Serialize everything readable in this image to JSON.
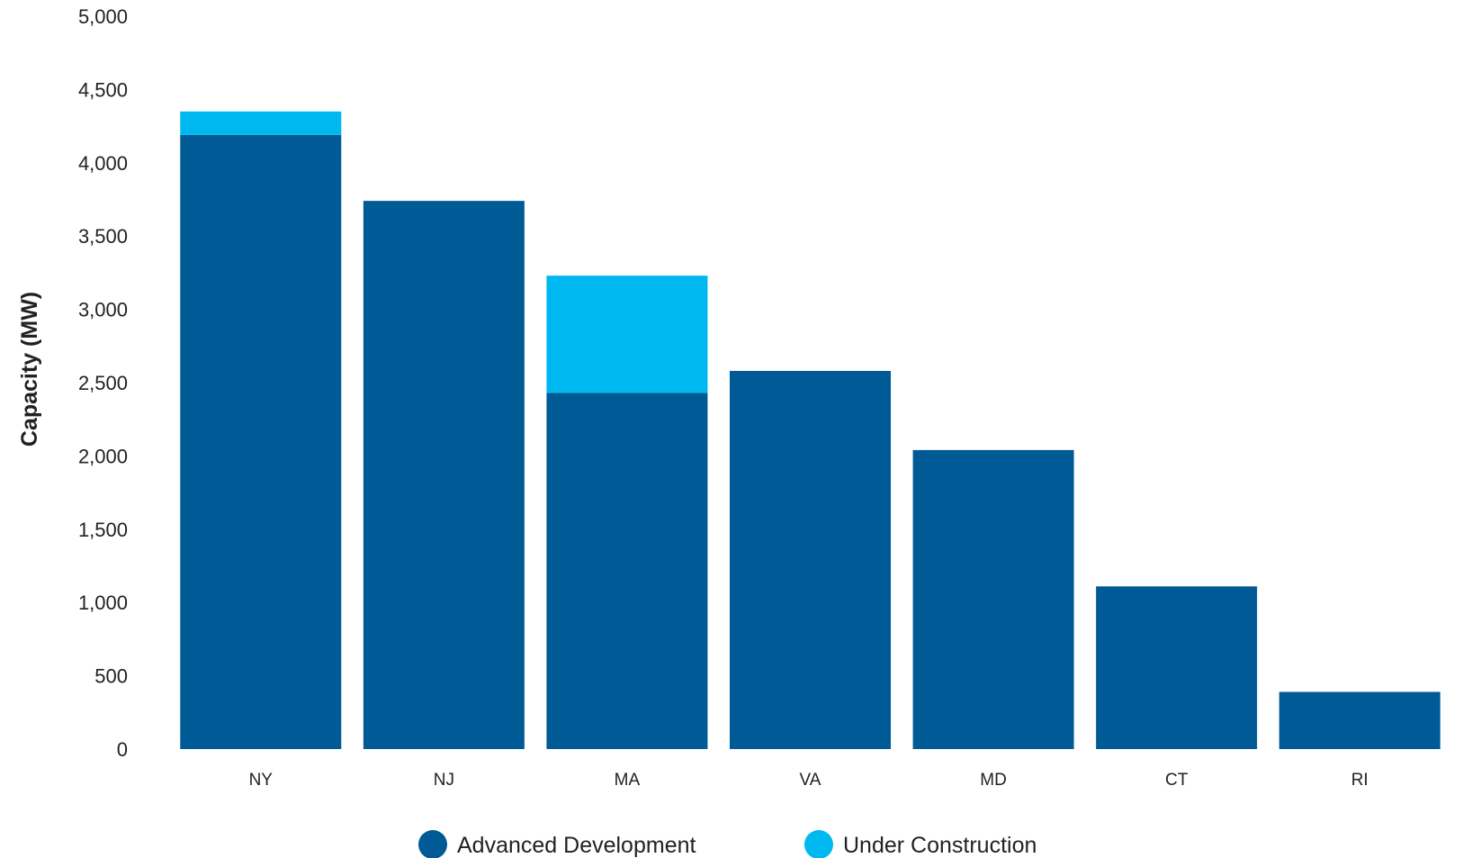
{
  "chart_data": {
    "type": "bar",
    "stacked": true,
    "categories": [
      "NY",
      "NJ",
      "MA",
      "VA",
      "MD",
      "CT",
      "RI"
    ],
    "series": [
      {
        "name": "Advanced Development",
        "color": "#005a96",
        "values": [
          4190,
          3740,
          2430,
          2580,
          2040,
          1110,
          390
        ]
      },
      {
        "name": "Under Construction",
        "color": "#00b8f0",
        "values": [
          160,
          0,
          800,
          0,
          0,
          0,
          0
        ]
      }
    ],
    "title": "",
    "xlabel": "",
    "ylabel": "Capacity (MW)",
    "ylim": [
      0,
      5000
    ],
    "yticks": [
      0,
      500,
      1000,
      1500,
      2000,
      2500,
      3000,
      3500,
      4000,
      4500,
      5000
    ],
    "ytick_labels": [
      "0",
      "500",
      "1,000",
      "1,500",
      "2,000",
      "2,500",
      "3,000",
      "3,500",
      "4,000",
      "4,500",
      "5,000"
    ],
    "grid": false,
    "legend_position": "bottom-center"
  }
}
